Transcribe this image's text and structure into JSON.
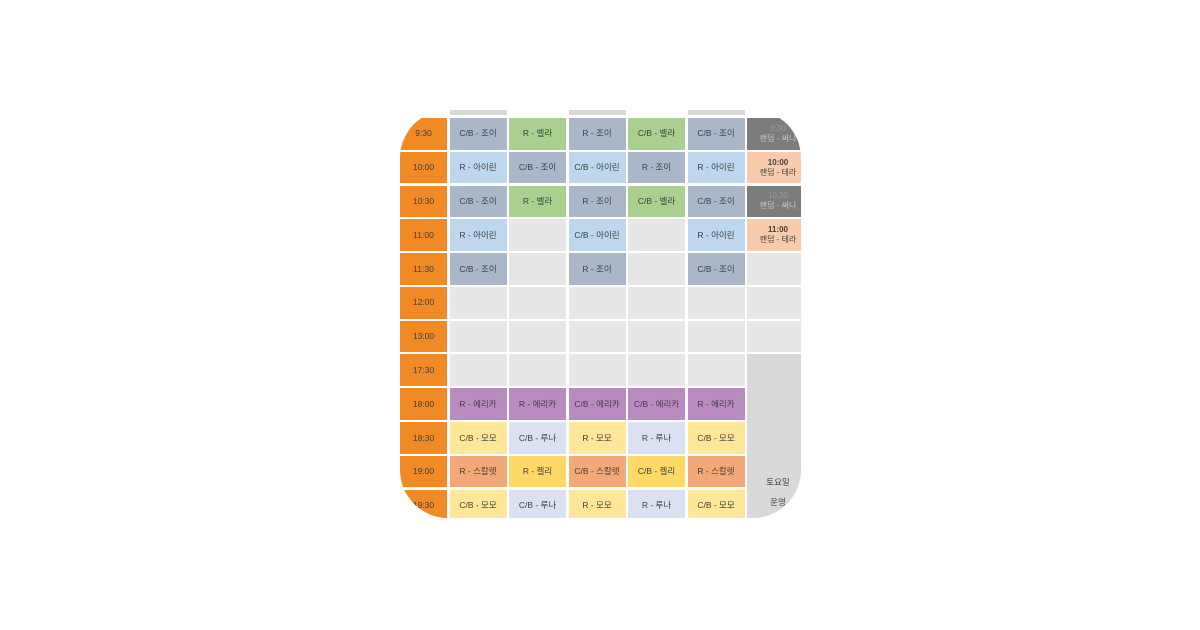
{
  "colors": {
    "background": "#FFFFFF",
    "time_column": "#F18A24",
    "cell_text": "#3F3F3F",
    "bluegray": "#A9B7C9",
    "green": "#A9D08E",
    "lightblue": "#BDD7EE",
    "purple": "#BA8BC0",
    "paleyellow": "#FFE699",
    "lavender": "#D9E1F2",
    "salmon": "#F2A878",
    "yellow": "#FFD966",
    "darkgray": "#7C7C7C",
    "peach": "#F8CBAD",
    "empty": "#E7E7E7",
    "merged": "#D9D9D9",
    "sliver": "#D9D9D9"
  },
  "schedule": {
    "rows": [
      {
        "time": "9:30",
        "cells": [
          {
            "text": "C/B - 조이",
            "color": "bluegray"
          },
          {
            "text": "R - 벨라",
            "color": "green"
          },
          {
            "text": "R - 조이",
            "color": "bluegray"
          },
          {
            "text": "C/B - 벨라",
            "color": "green"
          },
          {
            "text": "C/B - 조이",
            "color": "bluegray"
          }
        ],
        "random": {
          "color": "darkgray",
          "lines": [
            "9:30",
            "랜덤 - 써니"
          ]
        }
      },
      {
        "time": "10:00",
        "cells": [
          {
            "text": "R - 아이린",
            "color": "lightblue"
          },
          {
            "text": "C/B - 조이",
            "color": "bluegray"
          },
          {
            "text": "C/B - 아이린",
            "color": "lightblue"
          },
          {
            "text": "R - 조이",
            "color": "bluegray"
          },
          {
            "text": "R - 아이린",
            "color": "lightblue"
          }
        ],
        "random": {
          "color": "peach",
          "lines": [
            "10:00",
            "랜덤 - 테라"
          ]
        }
      },
      {
        "time": "10:30",
        "cells": [
          {
            "text": "C/B - 조이",
            "color": "bluegray"
          },
          {
            "text": "R - 벨라",
            "color": "green"
          },
          {
            "text": "R - 조이",
            "color": "bluegray"
          },
          {
            "text": "C/B - 벨라",
            "color": "green"
          },
          {
            "text": "C/B - 조이",
            "color": "bluegray"
          }
        ],
        "random": {
          "color": "darkgray",
          "lines": [
            "10:30",
            "랜덤 - 써니"
          ]
        }
      },
      {
        "time": "11:00",
        "cells": [
          {
            "text": "R - 아이린",
            "color": "lightblue"
          },
          {
            "text": "",
            "color": "empty"
          },
          {
            "text": "C/B - 아이린",
            "color": "lightblue"
          },
          {
            "text": "",
            "color": "empty"
          },
          {
            "text": "R - 아이린",
            "color": "lightblue"
          }
        ],
        "random": {
          "color": "peach",
          "lines": [
            "11:00",
            "랜덤 - 테라"
          ]
        }
      },
      {
        "time": "11:30",
        "cells": [
          {
            "text": "C/B - 조이",
            "color": "bluegray"
          },
          {
            "text": "",
            "color": "empty"
          },
          {
            "text": "R - 조이",
            "color": "bluegray"
          },
          {
            "text": "",
            "color": "empty"
          },
          {
            "text": "C/B - 조이",
            "color": "bluegray"
          }
        ],
        "random": {
          "color": "empty",
          "lines": []
        }
      },
      {
        "time": "12:00",
        "cells": [
          {
            "text": "",
            "color": "empty"
          },
          {
            "text": "",
            "color": "empty"
          },
          {
            "text": "",
            "color": "empty"
          },
          {
            "text": "",
            "color": "empty"
          },
          {
            "text": "",
            "color": "empty"
          }
        ],
        "random": {
          "color": "empty",
          "lines": []
        }
      },
      {
        "time": "13:00",
        "cells": [
          {
            "text": "",
            "color": "empty"
          },
          {
            "text": "",
            "color": "empty"
          },
          {
            "text": "",
            "color": "empty"
          },
          {
            "text": "",
            "color": "empty"
          },
          {
            "text": "",
            "color": "empty"
          }
        ],
        "random": {
          "color": "empty",
          "lines": []
        }
      },
      {
        "time": "17:30",
        "cells": [
          {
            "text": "",
            "color": "empty"
          },
          {
            "text": "",
            "color": "empty"
          },
          {
            "text": "",
            "color": "empty"
          },
          {
            "text": "",
            "color": "empty"
          },
          {
            "text": "",
            "color": "empty"
          }
        ],
        "random": {
          "color": "merged",
          "span": 5,
          "lines": [
            "토요일",
            "운영"
          ]
        }
      },
      {
        "time": "18:00",
        "cells": [
          {
            "text": "R - 에리카",
            "color": "purple"
          },
          {
            "text": "R - 에리카",
            "color": "purple"
          },
          {
            "text": "C/B - 에리카",
            "color": "purple"
          },
          {
            "text": "C/B - 에리카",
            "color": "purple"
          },
          {
            "text": "R - 에리카",
            "color": "purple"
          }
        ]
      },
      {
        "time": "18:30",
        "cells": [
          {
            "text": "C/B - 모모",
            "color": "paleyellow"
          },
          {
            "text": "C/B - 루나",
            "color": "lavender"
          },
          {
            "text": "R - 모모",
            "color": "paleyellow"
          },
          {
            "text": "R - 루나",
            "color": "lavender"
          },
          {
            "text": "C/B - 모모",
            "color": "paleyellow"
          }
        ]
      },
      {
        "time": "19:00",
        "cells": [
          {
            "text": "R - 스칼렛",
            "color": "salmon"
          },
          {
            "text": "R - 켈리",
            "color": "yellow"
          },
          {
            "text": "C/B - 스칼렛",
            "color": "salmon"
          },
          {
            "text": "C/B - 켈리",
            "color": "yellow"
          },
          {
            "text": "R - 스칼렛",
            "color": "salmon"
          }
        ]
      },
      {
        "time": "19:30",
        "cells": [
          {
            "text": "C/B - 모모",
            "color": "paleyellow"
          },
          {
            "text": "C/B - 루나",
            "color": "lavender"
          },
          {
            "text": "R - 모모",
            "color": "paleyellow"
          },
          {
            "text": "R - 루나",
            "color": "lavender"
          },
          {
            "text": "C/B - 모모",
            "color": "paleyellow"
          }
        ]
      }
    ]
  }
}
